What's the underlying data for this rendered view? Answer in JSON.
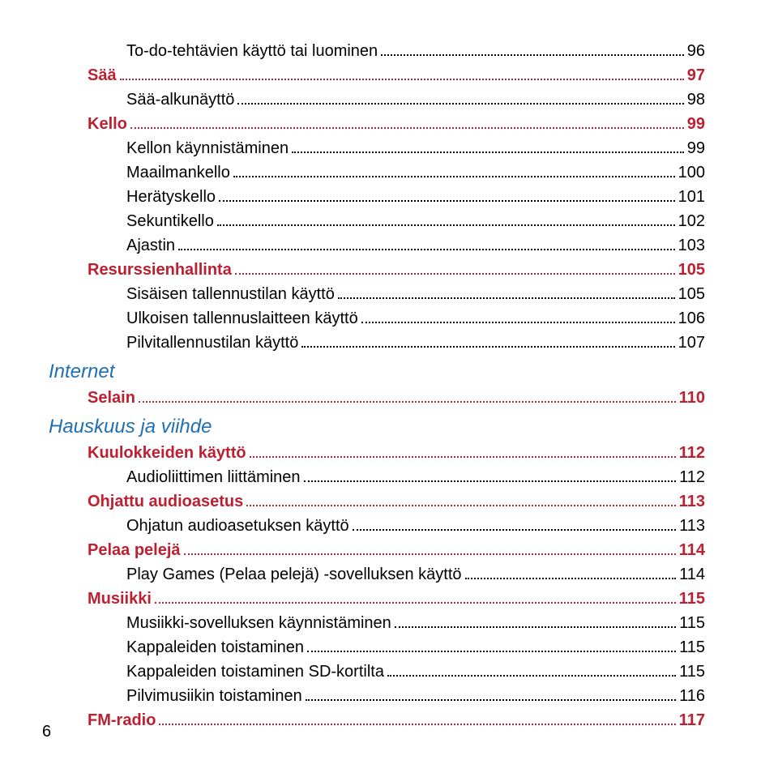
{
  "colors": {
    "section": "#1f6fb2",
    "sub": "#bd2031",
    "item": "#000000",
    "dots_sub": "#bd2031",
    "dots_item": "#000000",
    "background": "#ffffff"
  },
  "typography": {
    "section_fontsize": 24,
    "sub_fontsize": 20,
    "item_fontsize": 20,
    "line_height": 30,
    "section_style": "italic",
    "sub_weight": "bold",
    "item_weight": "normal"
  },
  "page_number": "6",
  "entries": [
    {
      "level": "item",
      "label": "To-do-tehtävien käyttö tai luominen",
      "page": "96"
    },
    {
      "level": "sub",
      "label": "Sää",
      "page": "97"
    },
    {
      "level": "item",
      "label": "Sää-alkunäyttö",
      "page": "98"
    },
    {
      "level": "sub",
      "label": "Kello",
      "page": "99"
    },
    {
      "level": "item",
      "label": "Kellon käynnistäminen",
      "page": "99"
    },
    {
      "level": "item",
      "label": "Maailmankello",
      "page": "100"
    },
    {
      "level": "item",
      "label": "Herätyskello",
      "page": "101"
    },
    {
      "level": "item",
      "label": "Sekuntikello",
      "page": "102"
    },
    {
      "level": "item",
      "label": "Ajastin",
      "page": "103"
    },
    {
      "level": "sub",
      "label": "Resurssienhallinta",
      "page": "105"
    },
    {
      "level": "item",
      "label": "Sisäisen tallennustilan käyttö",
      "page": "105"
    },
    {
      "level": "item",
      "label": "Ulkoisen tallennuslaitteen käyttö",
      "page": "106"
    },
    {
      "level": "item",
      "label": "Pilvitallennustilan käyttö",
      "page": "107"
    },
    {
      "level": "section",
      "label": "Internet",
      "page": ""
    },
    {
      "level": "sub",
      "label": "Selain",
      "page": "110"
    },
    {
      "level": "section",
      "label": "Hauskuus ja viihde",
      "page": ""
    },
    {
      "level": "sub",
      "label": "Kuulokkeiden käyttö",
      "page": "112"
    },
    {
      "level": "item",
      "label": "Audioliittimen liittäminen",
      "page": "112"
    },
    {
      "level": "sub",
      "label": "Ohjattu audioasetus",
      "page": "113"
    },
    {
      "level": "item",
      "label": "Ohjatun audioasetuksen käyttö",
      "page": "113"
    },
    {
      "level": "sub",
      "label": "Pelaa pelejä",
      "page": "114"
    },
    {
      "level": "item",
      "label": "Play Games (Pelaa pelejä) -sovelluksen käyttö",
      "page": "114"
    },
    {
      "level": "sub",
      "label": "Musiikki",
      "page": "115"
    },
    {
      "level": "item",
      "label": "Musiikki-sovelluksen käynnistäminen",
      "page": "115"
    },
    {
      "level": "item",
      "label": "Kappaleiden toistaminen",
      "page": "115"
    },
    {
      "level": "item",
      "label": "Kappaleiden toistaminen SD-kortilta",
      "page": "115"
    },
    {
      "level": "item",
      "label": "Pilvimusiikin toistaminen",
      "page": "116"
    },
    {
      "level": "sub",
      "label": "FM-radio",
      "page": "117"
    }
  ]
}
